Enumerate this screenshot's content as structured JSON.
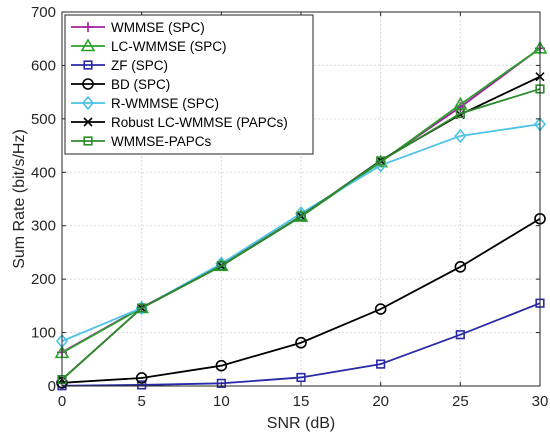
{
  "chart_data": {
    "type": "line",
    "title": "",
    "xlabel": "SNR (dB)",
    "ylabel": "Sum Rate (bit/s/Hz)",
    "xlim": [
      0,
      30
    ],
    "ylim": [
      0,
      700
    ],
    "xticks": [
      0,
      5,
      10,
      15,
      20,
      25,
      30
    ],
    "yticks": [
      0,
      100,
      200,
      300,
      400,
      500,
      600,
      700
    ],
    "grid": true,
    "legend_position": "top-left",
    "x": [
      0,
      5,
      10,
      15,
      20,
      25,
      30
    ],
    "series": [
      {
        "name": "WMMSE (SPC)",
        "color": "#a020a0",
        "marker": "plus",
        "values": [
          63,
          147,
          226,
          318,
          420,
          522,
          632
        ]
      },
      {
        "name": "LC-WMMSE (SPC)",
        "color": "#2ca02c",
        "marker": "triangle",
        "values": [
          62,
          146,
          225,
          317,
          419,
          527,
          632
        ]
      },
      {
        "name": "ZF (SPC)",
        "color": "#2a2aa8",
        "marker": "square",
        "values": [
          0.5,
          2,
          5,
          16,
          41,
          96,
          155
        ]
      },
      {
        "name": "BD (SPC)",
        "color": "#000000",
        "marker": "circle",
        "values": [
          6,
          15,
          38,
          81,
          144,
          223,
          313
        ]
      },
      {
        "name": "R-WMMSE (SPC)",
        "color": "#4cc3e6",
        "marker": "diamond",
        "values": [
          84,
          146,
          229,
          323,
          413,
          468,
          490
        ]
      },
      {
        "name": "Robust LC-WMMSE (PAPCs)",
        "color": "#000000",
        "marker": "x",
        "values": [
          12,
          146,
          225,
          318,
          422,
          508,
          579
        ]
      },
      {
        "name": "WMMSE-PAPCs",
        "color": "#2e8b2e",
        "marker": "square",
        "values": [
          12,
          146,
          225,
          318,
          421,
          510,
          556
        ]
      }
    ]
  }
}
